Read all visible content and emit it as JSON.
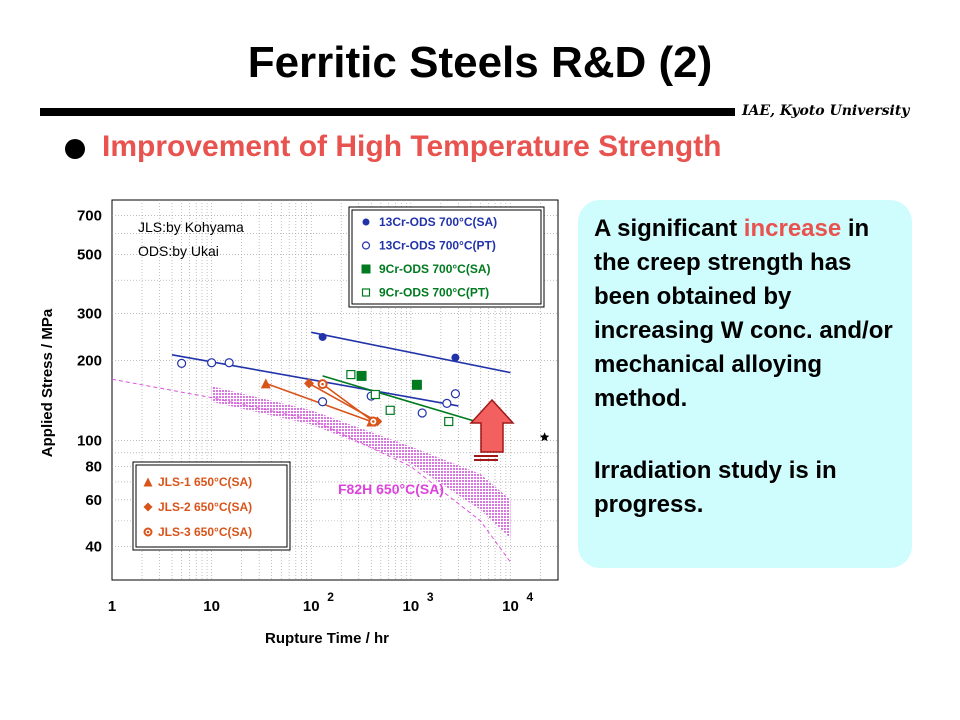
{
  "slide": {
    "title": "Ferritic Steels R&D (2)",
    "affiliation": "IAE, Kyoto University",
    "subtitle": "Improvement of High Temperature Strength"
  },
  "callout": {
    "p1_before": "A significant ",
    "p1_highlight": "increase",
    "p1_after": " in the creep strength has been obtained by increasing W conc. and/or mechanical alloying method.",
    "p2": "Irradiation study is in progress."
  },
  "colors": {
    "accent_red": "#e8524f",
    "callout_bg": "#cffcfc",
    "blue": "#2233aa",
    "green": "#007a1f",
    "orange": "#d9541a",
    "magenta": "#dd44dd",
    "band": "#e9a6ee"
  },
  "chart_data": {
    "type": "scatter",
    "xlabel": "Rupture Time / hr",
    "ylabel": "Applied Stress / MPa",
    "x_scale": "log",
    "y_scale": "log",
    "xlim": [
      1,
      30000
    ],
    "ylim": [
      30,
      800
    ],
    "x_ticks": [
      {
        "value": 1,
        "base": "1",
        "exp": ""
      },
      {
        "value": 10,
        "base": "10",
        "exp": ""
      },
      {
        "value": 100,
        "base": "10",
        "exp": "2"
      },
      {
        "value": 1000,
        "base": "10",
        "exp": "3"
      },
      {
        "value": 10000,
        "base": "10",
        "exp": "4"
      }
    ],
    "y_ticks": [
      {
        "value": 40,
        "label": "40"
      },
      {
        "value": 60,
        "label": "60"
      },
      {
        "value": 80,
        "label": "80"
      },
      {
        "value": 100,
        "label": "100"
      },
      {
        "value": 200,
        "label": "200"
      },
      {
        "value": 300,
        "label": "300"
      },
      {
        "value": 500,
        "label": "500"
      },
      {
        "value": 700,
        "label": "700"
      }
    ],
    "notes": [
      "JLS:by Kohyama",
      "ODS:by Ukai"
    ],
    "series": [
      {
        "name": "13Cr-ODS 700°C(SA)",
        "marker": "circle-filled",
        "color": "#2233aa",
        "points": [
          [
            130,
            245
          ],
          [
            2800,
            205
          ]
        ],
        "trend": [
          [
            100,
            255
          ],
          [
            10000,
            180
          ]
        ]
      },
      {
        "name": "13Cr-ODS 700°C(PT)",
        "marker": "circle-open",
        "color": "#2233aa",
        "points": [
          [
            5,
            195
          ],
          [
            10,
            196
          ],
          [
            15,
            196
          ],
          [
            130,
            140
          ],
          [
            400,
            147
          ],
          [
            1300,
            127
          ],
          [
            2300,
            138
          ],
          [
            2800,
            150
          ]
        ],
        "trend": [
          [
            4,
            210
          ],
          [
            3000,
            135
          ]
        ]
      },
      {
        "name": "9Cr-ODS 700°C(SA)",
        "marker": "square-filled",
        "color": "#007a1f",
        "points": [
          [
            320,
            175
          ],
          [
            1150,
            162
          ]
        ],
        "trend": [
          [
            130,
            175
          ],
          [
            4500,
            118
          ]
        ]
      },
      {
        "name": "9Cr-ODS 700°C(PT)",
        "marker": "square-open",
        "color": "#007a1f",
        "points": [
          [
            250,
            177
          ],
          [
            440,
            149
          ],
          [
            620,
            130
          ],
          [
            2400,
            118
          ]
        ],
        "trend": []
      },
      {
        "name": "JLS-1 650°C(SA)",
        "marker": "triangle-filled",
        "color": "#d9541a",
        "points": [
          [
            35,
            164
          ],
          [
            400,
            118
          ]
        ],
        "trend": [
          [
            35,
            164
          ],
          [
            400,
            118
          ]
        ]
      },
      {
        "name": "JLS-2 650°C(SA)",
        "marker": "diamond-filled",
        "color": "#d9541a",
        "points": [
          [
            95,
            164
          ],
          [
            460,
            118
          ]
        ],
        "trend": [
          [
            95,
            164
          ],
          [
            460,
            118
          ]
        ]
      },
      {
        "name": "JLS-3 650°C(SA)",
        "marker": "circle-dot",
        "color": "#d9541a",
        "points": [
          [
            130,
            163
          ],
          [
            420,
            118
          ]
        ],
        "trend": [
          [
            130,
            163
          ],
          [
            420,
            118
          ]
        ]
      },
      {
        "name": "star",
        "marker": "star",
        "color": "#000000",
        "points": [
          [
            22000,
            103
          ]
        ],
        "trend": []
      }
    ],
    "band": {
      "label": "F82H 650°C(SA)",
      "upper": [
        [
          10,
          160
        ],
        [
          100,
          130
        ],
        [
          1000,
          95
        ],
        [
          5000,
          75
        ],
        [
          10000,
          60
        ]
      ],
      "lower": [
        [
          10,
          140
        ],
        [
          100,
          115
        ],
        [
          1000,
          82
        ],
        [
          5000,
          55
        ],
        [
          10000,
          43
        ]
      ]
    },
    "dashed_curve": [
      [
        1,
        170
      ],
      [
        10,
        145
      ],
      [
        100,
        120
      ],
      [
        1000,
        80
      ],
      [
        5000,
        50
      ],
      [
        10000,
        35
      ]
    ],
    "legend": {
      "position": "top-right and lower-left"
    }
  }
}
